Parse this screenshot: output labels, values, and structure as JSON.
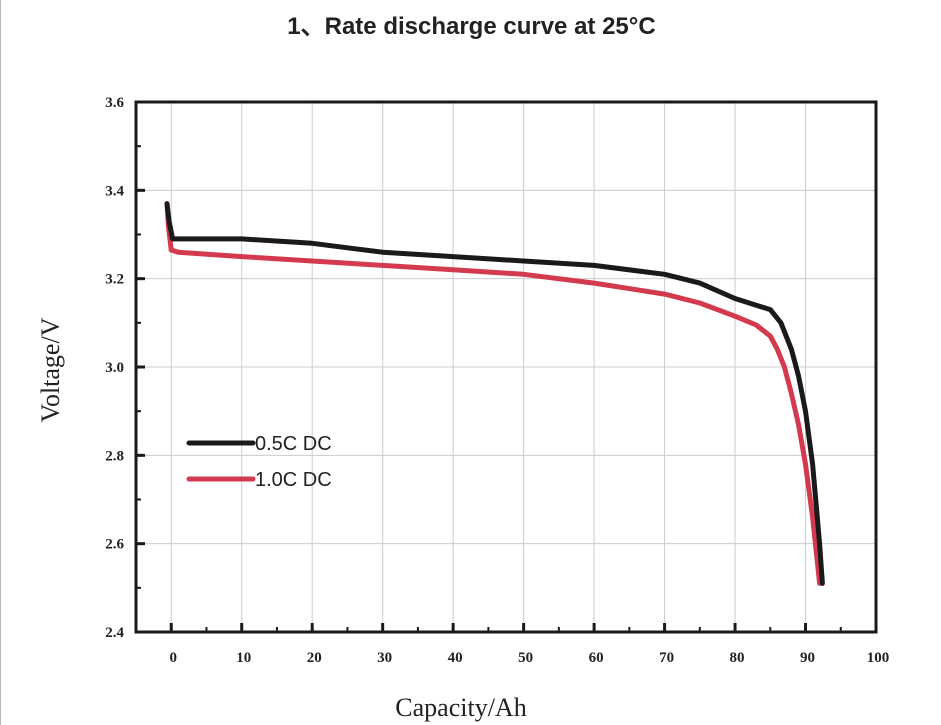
{
  "chart_data": {
    "type": "line",
    "title": "1、Rate discharge curve at 25°C",
    "xlabel": "Capacity/Ah",
    "ylabel": "Voltage/V",
    "xlim": [
      -5,
      100
    ],
    "ylim": [
      2.4,
      3.6
    ],
    "xticks": [
      0,
      10,
      20,
      30,
      40,
      50,
      60,
      70,
      80,
      90,
      100
    ],
    "yticks": [
      2.4,
      2.6,
      2.8,
      3.0,
      3.2,
      3.4,
      3.6
    ],
    "ytick_labels": [
      "2.4",
      "2.6",
      "2.8",
      "3.0",
      "3.2",
      "3.4",
      "3.6"
    ],
    "grid": true,
    "legend_position": "lower-left",
    "series": [
      {
        "name": "0.5C DC",
        "color": "#1a1a1a",
        "x": [
          -0.6,
          -0.3,
          0.2,
          1,
          10,
          20,
          25,
          30,
          40,
          50,
          60,
          70,
          75,
          80,
          83,
          85,
          86.5,
          88,
          89,
          90,
          91,
          92,
          92.4
        ],
        "y": [
          3.37,
          3.33,
          3.29,
          3.29,
          3.29,
          3.28,
          3.27,
          3.26,
          3.25,
          3.24,
          3.23,
          3.21,
          3.19,
          3.155,
          3.14,
          3.13,
          3.1,
          3.04,
          2.98,
          2.9,
          2.78,
          2.6,
          2.51
        ]
      },
      {
        "name": "1.0C DC",
        "color": "#d33a4e",
        "x": [
          -0.6,
          -0.4,
          0,
          1,
          10,
          20,
          30,
          40,
          50,
          60,
          70,
          75,
          80,
          83,
          85,
          86,
          87,
          88,
          89,
          90,
          91,
          91.6,
          92
        ],
        "y": [
          3.37,
          3.32,
          3.265,
          3.26,
          3.25,
          3.24,
          3.23,
          3.22,
          3.21,
          3.19,
          3.165,
          3.145,
          3.115,
          3.095,
          3.07,
          3.04,
          3.0,
          2.94,
          2.87,
          2.78,
          2.66,
          2.57,
          2.51
        ]
      }
    ]
  }
}
